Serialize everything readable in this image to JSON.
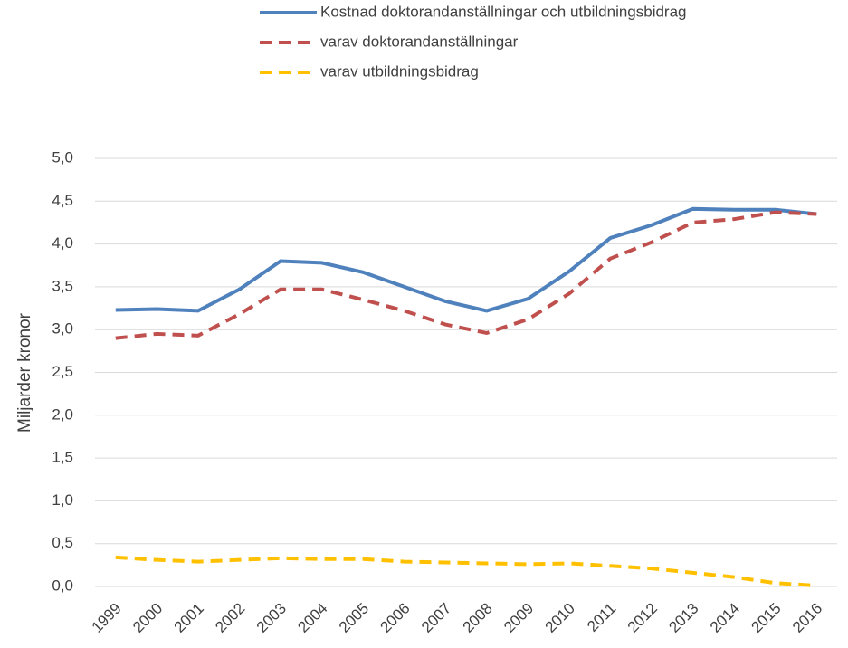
{
  "chart_data": {
    "type": "line",
    "y_label": "Miljarder kronor",
    "categories": [
      "1999",
      "2000",
      "2001",
      "2002",
      "2003",
      "2004",
      "2005",
      "2006",
      "2007",
      "2008",
      "2009",
      "2010",
      "2011",
      "2012",
      "2013",
      "2014",
      "2015",
      "2016"
    ],
    "series": [
      {
        "name": "Kostnad doktorandanställningar och utbildningsbidrag",
        "color": "#4f81bd",
        "dashed": false,
        "values": [
          3.23,
          3.24,
          3.22,
          3.47,
          3.8,
          3.78,
          3.67,
          3.5,
          3.33,
          3.22,
          3.36,
          3.68,
          4.07,
          4.22,
          4.41,
          4.4,
          4.4,
          4.35
        ]
      },
      {
        "name": "varav doktorandanställningar",
        "color": "#c0504d",
        "dashed": true,
        "values": [
          2.9,
          2.95,
          2.93,
          3.18,
          3.47,
          3.47,
          3.35,
          3.22,
          3.06,
          2.96,
          3.12,
          3.42,
          3.83,
          4.02,
          4.25,
          4.29,
          4.37,
          4.35
        ]
      },
      {
        "name": "varav utbildningsbidrag",
        "color": "#ffc000",
        "dashed": true,
        "values": [
          0.34,
          0.31,
          0.29,
          0.31,
          0.33,
          0.32,
          0.32,
          0.29,
          0.28,
          0.27,
          0.26,
          0.27,
          0.24,
          0.21,
          0.16,
          0.11,
          0.04,
          0.01
        ]
      }
    ],
    "ylim": [
      0,
      5
    ],
    "yticks": [
      {
        "value": 0,
        "label": "0,0"
      },
      {
        "value": 0.5,
        "label": "0,5"
      },
      {
        "value": 1,
        "label": "1,0"
      },
      {
        "value": 1.5,
        "label": "1,5"
      },
      {
        "value": 2,
        "label": "2,0"
      },
      {
        "value": 2.5,
        "label": "2,5"
      },
      {
        "value": 3,
        "label": "3,0"
      },
      {
        "value": 3.5,
        "label": "3,5"
      },
      {
        "value": 4,
        "label": "4,0"
      },
      {
        "value": 4.5,
        "label": "4,5"
      },
      {
        "value": 5,
        "label": "5,0"
      }
    ],
    "grid": true,
    "legend": "top"
  }
}
